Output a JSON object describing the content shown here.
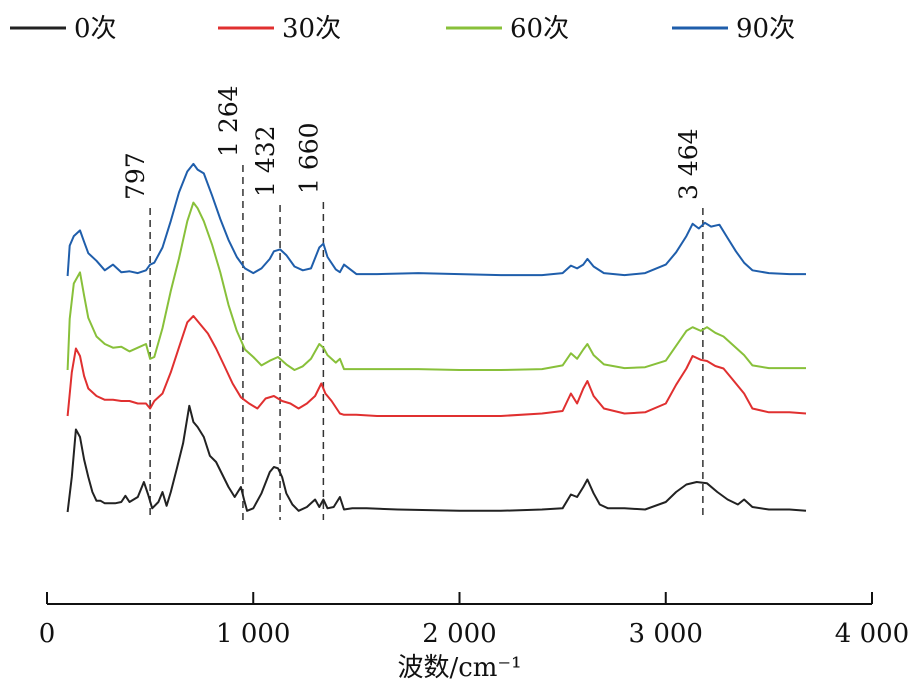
{
  "chart_data": {
    "type": "line",
    "title": "",
    "xlabel": "波数/cm⁻¹",
    "ylabel": "",
    "xlim": [
      0,
      4000
    ],
    "x_ticks": [
      0,
      1000,
      2000,
      3000,
      4000
    ],
    "x_tick_labels": [
      "0",
      "1 000",
      "2 000",
      "3 000",
      "4 000"
    ],
    "y_axis_shown": false,
    "grid": false,
    "legend_position": "top",
    "peak_markers": [
      {
        "x": 500,
        "label": "797"
      },
      {
        "x": 950,
        "label": "1 264"
      },
      {
        "x": 1130,
        "label": "1 432"
      },
      {
        "x": 1340,
        "label": "1 660"
      },
      {
        "x": 3180,
        "label": "3 464"
      }
    ],
    "series": [
      {
        "name": "0次",
        "color": "#222222",
        "x": [
          100,
          120,
          140,
          160,
          180,
          200,
          220,
          240,
          260,
          280,
          300,
          330,
          360,
          380,
          400,
          440,
          470,
          490,
          510,
          540,
          560,
          580,
          600,
          630,
          660,
          690,
          710,
          730,
          760,
          790,
          820,
          850,
          880,
          910,
          940,
          955,
          970,
          1000,
          1040,
          1080,
          1100,
          1120,
          1140,
          1160,
          1190,
          1220,
          1260,
          1300,
          1320,
          1340,
          1360,
          1390,
          1420,
          1440,
          1480,
          1550,
          1700,
          2000,
          2200,
          2400,
          2500,
          2540,
          2570,
          2600,
          2620,
          2650,
          2680,
          2720,
          2800,
          2900,
          3000,
          3050,
          3100,
          3150,
          3200,
          3250,
          3300,
          3350,
          3380,
          3420,
          3500,
          3600,
          3680
        ],
        "y": [
          0.0,
          0.28,
          0.66,
          0.6,
          0.42,
          0.28,
          0.16,
          0.09,
          0.09,
          0.07,
          0.07,
          0.07,
          0.08,
          0.13,
          0.08,
          0.12,
          0.24,
          0.14,
          0.03,
          0.08,
          0.16,
          0.05,
          0.16,
          0.35,
          0.55,
          0.85,
          0.72,
          0.68,
          0.6,
          0.45,
          0.4,
          0.3,
          0.2,
          0.12,
          0.2,
          0.1,
          0.01,
          0.03,
          0.15,
          0.32,
          0.36,
          0.35,
          0.28,
          0.15,
          0.06,
          0.01,
          0.04,
          0.1,
          0.04,
          0.1,
          0.03,
          0.04,
          0.12,
          0.02,
          0.03,
          0.03,
          0.02,
          0.01,
          0.01,
          0.02,
          0.03,
          0.14,
          0.12,
          0.2,
          0.26,
          0.15,
          0.06,
          0.03,
          0.03,
          0.02,
          0.08,
          0.16,
          0.22,
          0.24,
          0.23,
          0.16,
          0.1,
          0.06,
          0.1,
          0.04,
          0.02,
          0.02,
          0.01
        ]
      },
      {
        "name": "30次",
        "color": "#e03030",
        "x": [
          100,
          120,
          140,
          160,
          180,
          200,
          240,
          280,
          320,
          360,
          400,
          440,
          480,
          500,
          520,
          560,
          600,
          640,
          680,
          710,
          740,
          780,
          820,
          860,
          900,
          940,
          980,
          1020,
          1060,
          1100,
          1140,
          1180,
          1220,
          1260,
          1300,
          1330,
          1350,
          1380,
          1420,
          1440,
          1500,
          1600,
          1800,
          2000,
          2200,
          2400,
          2500,
          2540,
          2570,
          2600,
          2620,
          2650,
          2700,
          2800,
          2900,
          3000,
          3050,
          3100,
          3130,
          3170,
          3200,
          3240,
          3280,
          3320,
          3380,
          3420,
          3500,
          3600,
          3680
        ],
        "y": [
          0.0,
          0.35,
          0.54,
          0.48,
          0.32,
          0.22,
          0.16,
          0.13,
          0.13,
          0.12,
          0.12,
          0.1,
          0.1,
          0.06,
          0.12,
          0.18,
          0.35,
          0.55,
          0.75,
          0.8,
          0.74,
          0.66,
          0.54,
          0.4,
          0.26,
          0.15,
          0.1,
          0.06,
          0.14,
          0.16,
          0.12,
          0.1,
          0.06,
          0.1,
          0.16,
          0.26,
          0.18,
          0.12,
          0.02,
          0.01,
          0.01,
          0.0,
          0.0,
          0.0,
          0.0,
          0.02,
          0.04,
          0.18,
          0.1,
          0.22,
          0.28,
          0.16,
          0.06,
          0.02,
          0.03,
          0.1,
          0.25,
          0.38,
          0.48,
          0.45,
          0.44,
          0.4,
          0.38,
          0.3,
          0.18,
          0.06,
          0.03,
          0.03,
          0.02
        ]
      },
      {
        "name": "60次",
        "color": "#88c03a",
        "x": [
          100,
          110,
          130,
          160,
          180,
          200,
          240,
          280,
          320,
          360,
          400,
          440,
          480,
          500,
          520,
          560,
          600,
          640,
          680,
          710,
          730,
          760,
          800,
          840,
          880,
          920,
          960,
          1000,
          1040,
          1080,
          1120,
          1160,
          1200,
          1240,
          1280,
          1320,
          1340,
          1360,
          1400,
          1420,
          1440,
          1500,
          1600,
          1800,
          2000,
          2200,
          2400,
          2500,
          2540,
          2570,
          2600,
          2620,
          2650,
          2700,
          2800,
          2900,
          3000,
          3050,
          3100,
          3130,
          3170,
          3200,
          3240,
          3280,
          3320,
          3380,
          3420,
          3500,
          3600,
          3680
        ],
        "y": [
          0.0,
          0.55,
          0.93,
          1.05,
          0.8,
          0.56,
          0.36,
          0.28,
          0.24,
          0.25,
          0.2,
          0.24,
          0.28,
          0.12,
          0.14,
          0.45,
          0.85,
          1.2,
          1.6,
          1.8,
          1.74,
          1.6,
          1.35,
          1.05,
          0.7,
          0.42,
          0.22,
          0.14,
          0.05,
          0.1,
          0.14,
          0.06,
          0.0,
          0.04,
          0.12,
          0.28,
          0.24,
          0.16,
          0.08,
          0.12,
          0.01,
          0.01,
          0.01,
          0.01,
          0.0,
          0.0,
          0.01,
          0.05,
          0.18,
          0.12,
          0.22,
          0.28,
          0.16,
          0.06,
          0.02,
          0.03,
          0.1,
          0.26,
          0.42,
          0.46,
          0.42,
          0.46,
          0.4,
          0.36,
          0.28,
          0.16,
          0.05,
          0.02,
          0.02,
          0.02
        ]
      },
      {
        "name": "90次",
        "color": "#1f5eab",
        "x": [
          100,
          110,
          130,
          160,
          180,
          200,
          240,
          280,
          320,
          360,
          400,
          440,
          480,
          500,
          520,
          560,
          600,
          640,
          680,
          710,
          730,
          760,
          800,
          840,
          880,
          920,
          960,
          1000,
          1040,
          1080,
          1100,
          1130,
          1160,
          1200,
          1240,
          1280,
          1320,
          1340,
          1360,
          1400,
          1420,
          1440,
          1500,
          1600,
          1800,
          2000,
          2200,
          2400,
          2500,
          2540,
          2570,
          2600,
          2620,
          2650,
          2700,
          2800,
          2900,
          3000,
          3050,
          3100,
          3130,
          3160,
          3190,
          3220,
          3260,
          3300,
          3340,
          3380,
          3420,
          3500,
          3600,
          3680
        ],
        "y": [
          0.0,
          0.32,
          0.42,
          0.48,
          0.36,
          0.24,
          0.16,
          0.06,
          0.12,
          0.04,
          0.05,
          0.03,
          0.06,
          0.12,
          0.14,
          0.3,
          0.58,
          0.88,
          1.1,
          1.18,
          1.12,
          1.08,
          0.85,
          0.6,
          0.38,
          0.2,
          0.08,
          0.03,
          0.08,
          0.18,
          0.26,
          0.28,
          0.22,
          0.1,
          0.06,
          0.08,
          0.3,
          0.34,
          0.2,
          0.07,
          0.04,
          0.12,
          0.02,
          0.02,
          0.03,
          0.02,
          0.01,
          0.01,
          0.03,
          0.11,
          0.08,
          0.12,
          0.18,
          0.1,
          0.03,
          0.01,
          0.03,
          0.12,
          0.25,
          0.42,
          0.55,
          0.5,
          0.56,
          0.52,
          0.54,
          0.4,
          0.26,
          0.14,
          0.06,
          0.03,
          0.02,
          0.02
        ]
      }
    ]
  }
}
